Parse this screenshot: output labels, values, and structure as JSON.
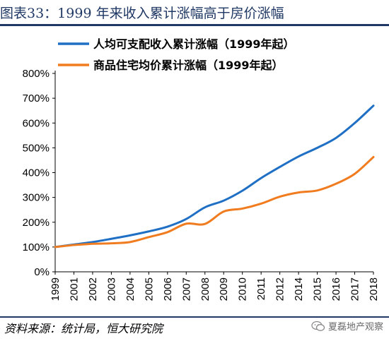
{
  "header": {
    "title": "图表33：1999 年来收入累计涨幅高于房价涨幅"
  },
  "footer": {
    "source": "资料来源：统计局，恒大研究院",
    "watermark": "夏磊地产观察"
  },
  "colors": {
    "income": "#1f6fc4",
    "housing": "#f07c1f",
    "title": "#1f3864"
  },
  "chart_data": {
    "type": "line",
    "title": "",
    "xlabel": "",
    "ylabel": "",
    "x_ticks": [
      "1999",
      "2001",
      "2002",
      "2003",
      "2004",
      "2005",
      "2006",
      "2007",
      "2008",
      "2009",
      "2010",
      "2011",
      "2012",
      "2014",
      "2015",
      "2016",
      "2017",
      "2018"
    ],
    "y_ticks": [
      "0%",
      "100%",
      "200%",
      "300%",
      "400%",
      "500%",
      "600%",
      "700%",
      "800%"
    ],
    "ylim": [
      0,
      800
    ],
    "grid": false,
    "legend_position": "top",
    "series": [
      {
        "name": "人均可支配收入累计涨幅（1999年起）",
        "color": "#1f6fc4",
        "x": [
          "1999",
          "2001",
          "2002",
          "2003",
          "2004",
          "2005",
          "2006",
          "2007",
          "2008",
          "2009",
          "2010",
          "2011",
          "2012",
          "2014",
          "2015",
          "2016",
          "2017",
          "2018"
        ],
        "values": [
          100,
          110,
          120,
          133,
          147,
          163,
          182,
          213,
          260,
          287,
          327,
          378,
          423,
          465,
          500,
          540,
          600,
          670
        ]
      },
      {
        "name": "商品住宅均价累计涨幅（1999年起）",
        "color": "#f07c1f",
        "x": [
          "1999",
          "2001",
          "2002",
          "2003",
          "2004",
          "2005",
          "2006",
          "2007",
          "2008",
          "2009",
          "2010",
          "2011",
          "2012",
          "2014",
          "2015",
          "2016",
          "2017",
          "2018"
        ],
        "values": [
          100,
          108,
          113,
          115,
          120,
          140,
          160,
          194,
          193,
          243,
          255,
          275,
          303,
          320,
          328,
          355,
          395,
          463
        ]
      }
    ]
  }
}
